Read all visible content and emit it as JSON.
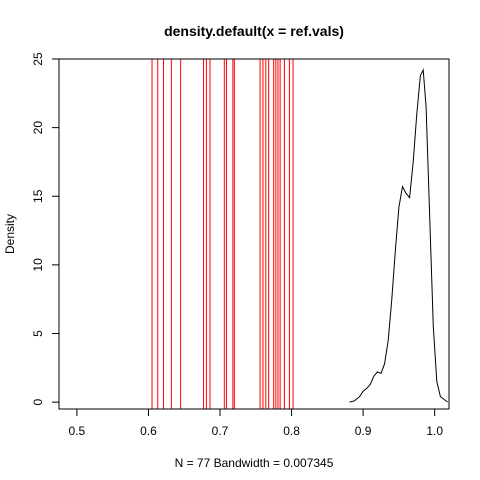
{
  "chart_data": {
    "type": "line",
    "title": "density.default(x = ref.vals)",
    "xlabel": "N = 77   Bandwidth = 0.007345",
    "ylabel": "Density",
    "xlim": [
      0.475,
      1.02
    ],
    "ylim": [
      -0.5,
      25
    ],
    "x_ticks": [
      0.5,
      0.6,
      0.7,
      0.8,
      0.9,
      1.0
    ],
    "x_tick_labels": [
      "0.5",
      "0.6",
      "0.7",
      "0.8",
      "0.9",
      "1.0"
    ],
    "y_ticks": [
      0,
      5,
      10,
      15,
      20,
      25
    ],
    "y_tick_labels": [
      "0",
      "5",
      "10",
      "15",
      "20",
      "25"
    ],
    "grid": false,
    "legend": "none",
    "series": [
      {
        "color": "#000000",
        "x": [
          0.881,
          0.888,
          0.895,
          0.9,
          0.905,
          0.91,
          0.915,
          0.92,
          0.925,
          0.93,
          0.935,
          0.94,
          0.945,
          0.95,
          0.955,
          0.96,
          0.965,
          0.97,
          0.975,
          0.98,
          0.984,
          0.988,
          0.993,
          0.998,
          1.003,
          1.008,
          1.018
        ],
        "y": [
          0.0,
          0.1,
          0.4,
          0.8,
          1.0,
          1.3,
          1.9,
          2.2,
          2.1,
          2.8,
          4.5,
          7.5,
          11.0,
          14.2,
          15.7,
          15.2,
          14.9,
          17.5,
          21.0,
          23.8,
          24.2,
          21.5,
          13.5,
          5.5,
          1.5,
          0.4,
          0.0
        ]
      }
    ],
    "reference_lines": {
      "color": "#ff0000",
      "x": [
        0.605,
        0.613,
        0.621,
        0.632,
        0.645,
        0.677,
        0.681,
        0.686,
        0.706,
        0.709,
        0.718,
        0.72,
        0.756,
        0.76,
        0.764,
        0.768,
        0.775,
        0.778,
        0.781,
        0.784,
        0.79,
        0.797,
        0.802
      ]
    }
  }
}
